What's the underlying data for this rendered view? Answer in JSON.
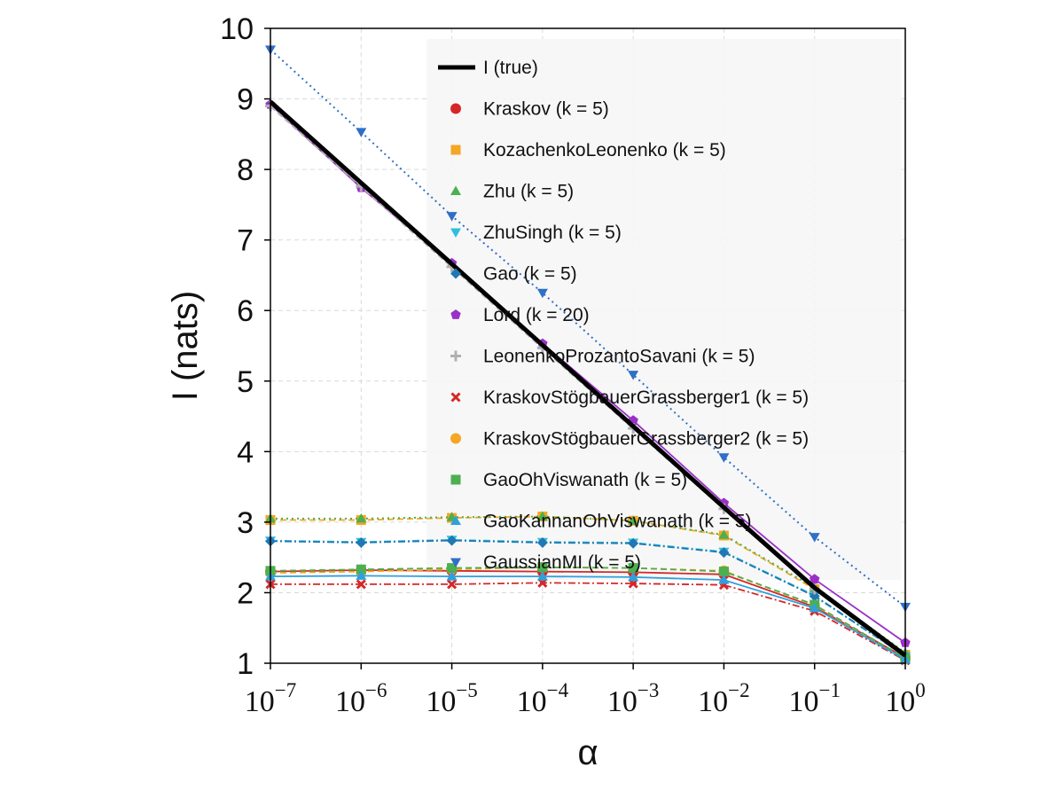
{
  "chart_data": {
    "type": "line",
    "title": "",
    "xlabel": "α",
    "ylabel": "I (nats)",
    "xscale": "log",
    "xlim": [
      1e-07,
      1
    ],
    "ylim": [
      1,
      10
    ],
    "grid": true,
    "legend_position": "upper-right-inside",
    "x": [
      1e-07,
      1e-06,
      1e-05,
      0.0001,
      0.001,
      0.01,
      0.1,
      1
    ],
    "x_tick_labels": [
      {
        "base": "10",
        "exp": "−7"
      },
      {
        "base": "10",
        "exp": "−6"
      },
      {
        "base": "10",
        "exp": "−5"
      },
      {
        "base": "10",
        "exp": "−4"
      },
      {
        "base": "10",
        "exp": "−3"
      },
      {
        "base": "10",
        "exp": "−2"
      },
      {
        "base": "10",
        "exp": "−1"
      },
      {
        "base": "10",
        "exp": "0"
      }
    ],
    "y_ticks": [
      "1",
      "2",
      "3",
      "4",
      "5",
      "6",
      "7",
      "8",
      "9",
      "10"
    ],
    "series": [
      {
        "name": "I (true)",
        "color": "#000000",
        "marker": "none",
        "line": "solid",
        "values": [
          8.96,
          7.81,
          6.66,
          5.51,
          4.36,
          3.21,
          2.07,
          1.11
        ]
      },
      {
        "name": "Kraskov (k = 5)",
        "color": "#d62728",
        "marker": "circle",
        "line": "solid",
        "values": [
          2.3,
          2.32,
          2.31,
          2.3,
          2.29,
          2.26,
          1.8,
          1.08
        ]
      },
      {
        "name": "KozachenkoLeonenko (k = 5)",
        "color": "#f5a623",
        "marker": "square",
        "line": "dashed",
        "values": [
          3.03,
          3.03,
          3.06,
          3.08,
          3.02,
          2.81,
          2.05,
          1.12
        ]
      },
      {
        "name": "Zhu (k = 5)",
        "color": "#4caf50",
        "marker": "triangle-up",
        "line": "dotted",
        "values": [
          3.05,
          3.05,
          3.07,
          3.08,
          3.02,
          2.82,
          2.07,
          1.15
        ]
      },
      {
        "name": "ZhuSingh (k = 5)",
        "color": "#2fbfdc",
        "marker": "triangle-down",
        "line": "dashdot",
        "values": [
          2.74,
          2.72,
          2.75,
          2.72,
          2.71,
          2.58,
          1.96,
          1.1
        ]
      },
      {
        "name": "Gao (k = 5)",
        "color": "#1f77b4",
        "marker": "diamond",
        "line": "dashdot",
        "values": [
          2.73,
          2.71,
          2.74,
          2.71,
          2.7,
          2.57,
          1.95,
          1.1
        ]
      },
      {
        "name": "Lord (k = 20)",
        "color": "#9b30c8",
        "marker": "pentagon",
        "line": "solid",
        "values": [
          8.92,
          7.74,
          6.67,
          5.53,
          4.44,
          3.27,
          2.19,
          1.29
        ]
      },
      {
        "name": "LeonenkoProzantoSavani (k = 5)",
        "color": "#b0b0b0",
        "marker": "plus",
        "line": "dashed",
        "values": [
          8.9,
          7.76,
          6.62,
          5.47,
          4.33,
          3.19,
          2.05,
          1.08
        ]
      },
      {
        "name": "KraskovStögbauerGrassberger1 (k = 5)",
        "color": "#d62728",
        "marker": "x",
        "line": "dashdot",
        "values": [
          2.12,
          2.12,
          2.12,
          2.14,
          2.13,
          2.11,
          1.74,
          1.04
        ]
      },
      {
        "name": "KraskovStögbauerGrassberger2 (k = 5)",
        "color": "#f5a623",
        "marker": "circle",
        "line": "dashed",
        "values": [
          2.28,
          2.3,
          2.33,
          2.36,
          2.35,
          2.31,
          1.82,
          1.06
        ]
      },
      {
        "name": "GaoOhViswanath (k = 5)",
        "color": "#4caf50",
        "marker": "square",
        "line": "dashed",
        "values": [
          2.31,
          2.33,
          2.35,
          2.36,
          2.35,
          2.3,
          1.83,
          1.07
        ]
      },
      {
        "name": "GaoKannanOhViswanath (k = 5)",
        "color": "#2fa0dc",
        "marker": "triangle-up",
        "line": "solid",
        "values": [
          2.23,
          2.24,
          2.23,
          2.23,
          2.22,
          2.18,
          1.78,
          1.05
        ]
      },
      {
        "name": "GaussianMI (k = 5)",
        "color": "#2f6fc6",
        "marker": "triangle-down",
        "line": "dotted",
        "values": [
          9.7,
          8.53,
          7.34,
          6.25,
          5.09,
          3.92,
          2.79,
          1.8
        ]
      }
    ]
  }
}
